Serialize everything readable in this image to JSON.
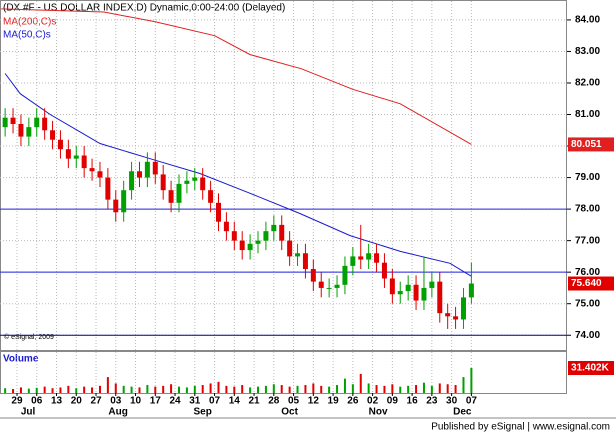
{
  "chart_data": {
    "type": "candlestick",
    "title": "(DX #F - US DOLLAR INDEX,D) Dynamic,0:00-24:00 (Delayed)",
    "annotation": "© eSignal, 2009",
    "footer": "Published by eSignal | www.esignal.com",
    "x": [
      -3,
      -1,
      1,
      3,
      5,
      7,
      9,
      11,
      13,
      15,
      17,
      19,
      21,
      23,
      25,
      27,
      29,
      31,
      33,
      35,
      37,
      39,
      41,
      43,
      45,
      47,
      49,
      51,
      53,
      55,
      57,
      59,
      61,
      63,
      65,
      67,
      69,
      71,
      73,
      75,
      77,
      79,
      81,
      83,
      85,
      87,
      89,
      91,
      93,
      95,
      97,
      99,
      101,
      103,
      105,
      107,
      109,
      111,
      113,
      115
    ],
    "open": [
      80.6,
      80.9,
      80.7,
      80.3,
      80.6,
      80.9,
      80.5,
      80.2,
      79.9,
      79.6,
      79.7,
      79.3,
      79.2,
      79.0,
      78.3,
      77.9,
      78.6,
      79.2,
      79.0,
      79.5,
      79.1,
      78.6,
      78.2,
      78.8,
      78.9,
      79.0,
      78.6,
      78.2,
      77.6,
      77.3,
      77.0,
      76.7,
      76.9,
      77.0,
      77.3,
      77.5,
      77.0,
      76.5,
      76.6,
      76.1,
      75.7,
      75.5,
      75.5,
      75.6,
      76.2,
      76.5,
      76.4,
      76.6,
      76.3,
      75.8,
      75.3,
      75.4,
      75.6,
      75.1,
      75.5,
      75.7,
      74.7,
      74.6,
      74.5,
      75.2
    ],
    "high": [
      81.2,
      81.2,
      81.0,
      80.9,
      81.2,
      81.2,
      80.8,
      80.5,
      80.2,
      80.0,
      80.0,
      79.6,
      79.5,
      79.3,
      78.6,
      78.9,
      79.5,
      79.5,
      79.8,
      79.8,
      79.4,
      78.9,
      79.1,
      79.2,
      79.3,
      79.3,
      78.9,
      78.5,
      77.9,
      77.6,
      77.3,
      77.2,
      77.3,
      77.6,
      77.8,
      77.8,
      77.3,
      76.9,
      76.9,
      76.4,
      76.0,
      75.8,
      75.9,
      76.5,
      76.8,
      77.5,
      76.9,
      76.9,
      76.6,
      76.1,
      75.7,
      75.9,
      75.9,
      76.5,
      76.0,
      76.0,
      75.0,
      74.9,
      75.5,
      76.3
    ],
    "low": [
      80.3,
      80.4,
      80.0,
      80.0,
      80.3,
      80.2,
      79.9,
      79.6,
      79.3,
      79.3,
      79.0,
      78.9,
      78.7,
      78.0,
      77.6,
      77.6,
      78.3,
      78.7,
      78.7,
      78.8,
      78.3,
      77.9,
      77.9,
      78.5,
      78.6,
      78.3,
      77.9,
      77.3,
      77.0,
      76.7,
      76.4,
      76.4,
      76.6,
      76.7,
      77.0,
      76.7,
      76.2,
      76.2,
      75.8,
      75.4,
      75.2,
      75.2,
      75.2,
      75.3,
      75.9,
      76.1,
      76.1,
      76.0,
      75.5,
      75.0,
      75.0,
      75.1,
      74.8,
      74.8,
      75.2,
      74.4,
      74.2,
      74.2,
      74.2,
      75.0
    ],
    "close": [
      80.9,
      80.7,
      80.3,
      80.6,
      80.9,
      80.5,
      80.2,
      79.9,
      79.6,
      79.7,
      79.3,
      79.2,
      79.0,
      78.3,
      77.9,
      78.6,
      79.2,
      79.0,
      79.5,
      79.1,
      78.6,
      78.2,
      78.8,
      78.9,
      79.0,
      78.6,
      78.2,
      77.6,
      77.3,
      77.0,
      76.7,
      76.9,
      77.0,
      77.3,
      77.5,
      77.0,
      76.5,
      76.6,
      76.1,
      75.7,
      75.5,
      75.5,
      75.6,
      76.2,
      76.5,
      76.4,
      76.6,
      76.3,
      75.8,
      75.3,
      75.4,
      75.6,
      75.1,
      75.5,
      75.7,
      74.7,
      74.6,
      74.5,
      75.2,
      75.64
    ],
    "last_close": {
      "value": 75.64,
      "label": "75.640"
    },
    "up_color": "#00a000",
    "down_color": "#e00000",
    "lines": [
      {
        "name": "MA(200,C)s",
        "color": "#e02020",
        "x": [
          -4,
          22,
          35,
          50,
          59,
          72,
          85,
          97,
          115
        ],
        "values": [
          84.35,
          84.25,
          83.94,
          83.5,
          82.9,
          82.45,
          81.8,
          81.34,
          80.051
        ]
      },
      {
        "name": "MA(50,C)s",
        "color": "#1a1ad0",
        "x": [
          -3,
          0.8,
          8.4,
          21,
          33.7,
          46.3,
          59,
          71.6,
          84.3,
          97,
          109.6,
          115
        ],
        "values": [
          82.3,
          81.66,
          81.0,
          80.08,
          79.6,
          79.13,
          78.5,
          77.86,
          77.16,
          76.66,
          76.28,
          75.87
        ]
      }
    ],
    "hlines": [
      {
        "value": 78,
        "color": "#2020e0"
      },
      {
        "value": 76,
        "color": "#2020e0"
      },
      {
        "value": 74,
        "color": "#000080"
      }
    ],
    "xlim": [
      -4.3,
      139.2
    ],
    "ylim": [
      73.5,
      84.6
    ],
    "yticks": [
      {
        "value": 74,
        "label": "74.00"
      },
      {
        "value": 75,
        "label": "75.00"
      },
      {
        "value": 76,
        "label": "76.00"
      },
      {
        "value": 77,
        "label": "77.00"
      },
      {
        "value": 78,
        "label": "78.00"
      },
      {
        "value": 79,
        "label": "79.00"
      },
      {
        "value": 80,
        "label": "80.00"
      },
      {
        "value": 81,
        "label": "81.00"
      },
      {
        "value": 82,
        "label": "82.00"
      },
      {
        "value": 83,
        "label": "83.00"
      },
      {
        "value": 84,
        "label": "84.00"
      }
    ],
    "xticks": [
      {
        "value": 0,
        "label": "29"
      },
      {
        "value": 5,
        "label": "06"
      },
      {
        "value": 10,
        "label": "13"
      },
      {
        "value": 15,
        "label": "20"
      },
      {
        "value": 20,
        "label": "27"
      },
      {
        "value": 25,
        "label": "03"
      },
      {
        "value": 30,
        "label": "10"
      },
      {
        "value": 35,
        "label": "17"
      },
      {
        "value": 40,
        "label": "24"
      },
      {
        "value": 45,
        "label": "31"
      },
      {
        "value": 50,
        "label": "07"
      },
      {
        "value": 55,
        "label": "14"
      },
      {
        "value": 60,
        "label": "21"
      },
      {
        "value": 65,
        "label": "28"
      },
      {
        "value": 70,
        "label": "05"
      },
      {
        "value": 75,
        "label": "12"
      },
      {
        "value": 80,
        "label": "19"
      },
      {
        "value": 85,
        "label": "26"
      },
      {
        "value": 90,
        "label": "02"
      },
      {
        "value": 95,
        "label": "09"
      },
      {
        "value": 100,
        "label": "16"
      },
      {
        "value": 105,
        "label": "23"
      },
      {
        "value": 110,
        "label": "30"
      },
      {
        "value": 115,
        "label": "07"
      }
    ],
    "month_ticks": [
      {
        "value": 2.8,
        "label": "Jul"
      },
      {
        "value": 25.6,
        "label": "Aug"
      },
      {
        "value": 47,
        "label": "Sep"
      },
      {
        "value": 69,
        "label": "Oct"
      },
      {
        "value": 91.4,
        "label": "Nov"
      },
      {
        "value": 112.7,
        "label": "Dec"
      }
    ],
    "grid": true,
    "volume": {
      "name": "Volume",
      "ylim": [
        0,
        51500
      ],
      "last_label": "31.402K",
      "values": [
        6000,
        5000,
        7000,
        5500,
        6500,
        8000,
        6000,
        7000,
        9000,
        6000,
        8000,
        7000,
        9000,
        20000,
        12000,
        9000,
        8000,
        7000,
        10000,
        8000,
        9000,
        11000,
        8000,
        7000,
        9000,
        10000,
        12000,
        14000,
        9000,
        8000,
        10000,
        7000,
        8000,
        9000,
        11000,
        10000,
        8000,
        9000,
        10000,
        12000,
        9000,
        8000,
        10000,
        18000,
        11000,
        24000,
        12000,
        10000,
        9000,
        11000,
        8000,
        9000,
        10000,
        13000,
        9000,
        12000,
        11000,
        10000,
        20000,
        31402
      ]
    }
  }
}
